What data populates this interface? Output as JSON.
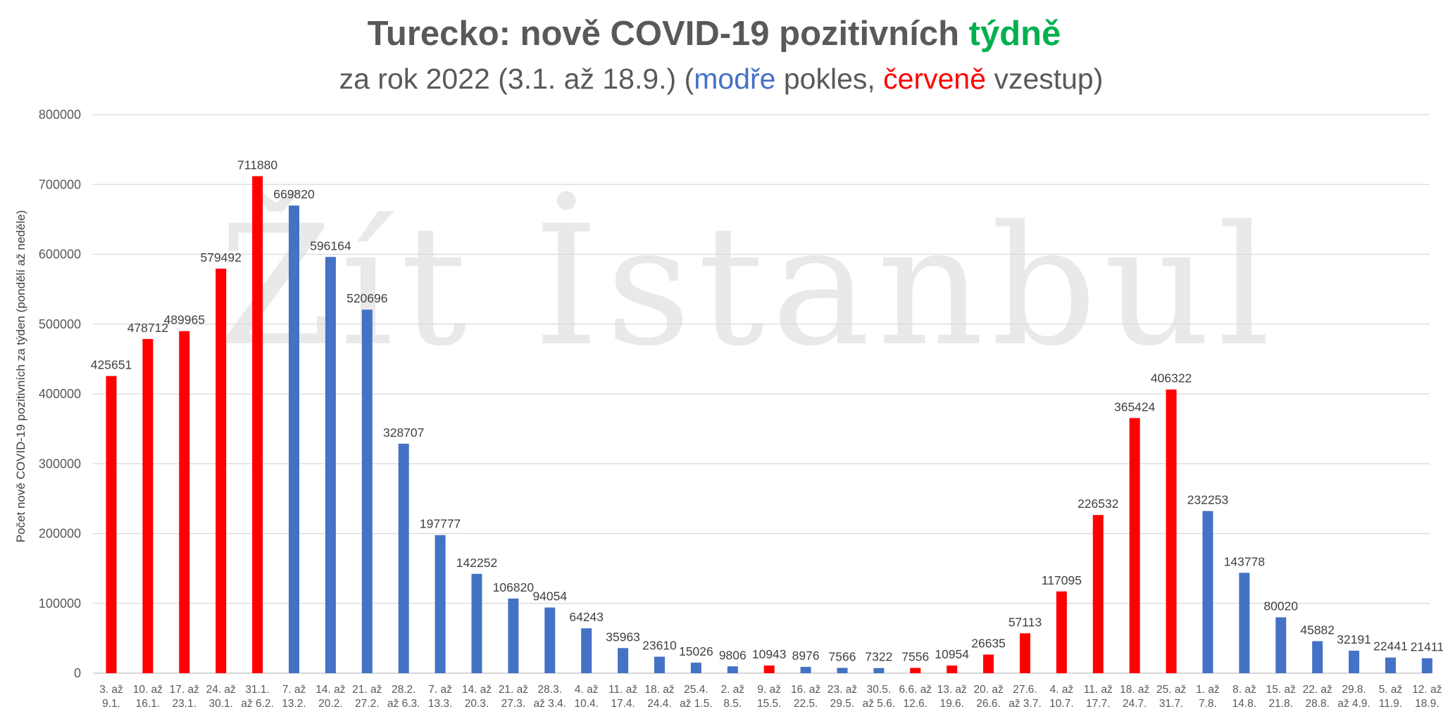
{
  "chart_data": {
    "type": "bar",
    "title": {
      "prefix": "Turecko: nově COVID-19 pozitivních ",
      "highlight": "týdně"
    },
    "subtitle": {
      "part1": "za rok 2022 (3.1. až 18.9.) (",
      "blue_word": "modře",
      "part2": " pokles, ",
      "red_word": "červeně",
      "part3": " vzestup)"
    },
    "ylabel": "Počet nově COVID-19 pozitivních za týden (pondělí až neděle)",
    "xlabel": "",
    "ylim": [
      0,
      800000
    ],
    "yticks": [
      "0",
      "100000",
      "200000",
      "300000",
      "400000",
      "500000",
      "600000",
      "700000",
      "800000"
    ],
    "grid": true,
    "watermark": "Žít İstanbul",
    "colors": {
      "increase": "#ff0000",
      "decrease": "#4472c4",
      "title_highlight": "#00b050",
      "text": "#595959"
    },
    "categories": [
      [
        "3. až",
        "9.1."
      ],
      [
        "10. až",
        "16.1."
      ],
      [
        "17. až",
        "23.1."
      ],
      [
        "24. až",
        "30.1."
      ],
      [
        "31.1.",
        "až 6.2."
      ],
      [
        "7. až",
        "13.2."
      ],
      [
        "14. až",
        "20.2."
      ],
      [
        "21. až",
        "27.2."
      ],
      [
        "28.2.",
        "až 6.3."
      ],
      [
        "7. až",
        "13.3."
      ],
      [
        "14. až",
        "20.3."
      ],
      [
        "21. až",
        "27.3."
      ],
      [
        "28.3.",
        "až 3.4."
      ],
      [
        "4. až",
        "10.4."
      ],
      [
        "11. až",
        "17.4."
      ],
      [
        "18. až",
        "24.4."
      ],
      [
        "25.4.",
        "až 1.5."
      ],
      [
        "2. až",
        "8.5."
      ],
      [
        "9. až",
        "15.5."
      ],
      [
        "16. až",
        "22.5."
      ],
      [
        "23. až",
        "29.5."
      ],
      [
        "30.5.",
        "až 5.6."
      ],
      [
        "6.6. až",
        "12.6."
      ],
      [
        "13. až",
        "19.6."
      ],
      [
        "20. až",
        "26.6."
      ],
      [
        "27.6.",
        "až 3.7."
      ],
      [
        "4. až",
        "10.7."
      ],
      [
        "11. až",
        "17.7."
      ],
      [
        "18. až",
        "24.7."
      ],
      [
        "25. až",
        "31.7."
      ],
      [
        "1. až",
        "7.8."
      ],
      [
        "8. až",
        "14.8."
      ],
      [
        "15. až",
        "21.8."
      ],
      [
        "22. až",
        "28.8."
      ],
      [
        "29.8.",
        "až 4.9."
      ],
      [
        "5. až",
        "11.9."
      ],
      [
        "12. až",
        "18.9."
      ]
    ],
    "values": [
      425651,
      478712,
      489965,
      579492,
      711880,
      669820,
      596164,
      520696,
      328707,
      197777,
      142252,
      106820,
      94054,
      64243,
      35963,
      23610,
      15026,
      9806,
      10943,
      8976,
      7566,
      7322,
      7556,
      10954,
      26635,
      57113,
      117095,
      226532,
      365424,
      406322,
      232253,
      143778,
      80020,
      45882,
      32191,
      22441,
      21411
    ],
    "trend": [
      "increase",
      "increase",
      "increase",
      "increase",
      "increase",
      "decrease",
      "decrease",
      "decrease",
      "decrease",
      "decrease",
      "decrease",
      "decrease",
      "decrease",
      "decrease",
      "decrease",
      "decrease",
      "decrease",
      "decrease",
      "increase",
      "decrease",
      "decrease",
      "decrease",
      "increase",
      "increase",
      "increase",
      "increase",
      "increase",
      "increase",
      "increase",
      "increase",
      "decrease",
      "decrease",
      "decrease",
      "decrease",
      "decrease",
      "decrease",
      "decrease"
    ]
  }
}
